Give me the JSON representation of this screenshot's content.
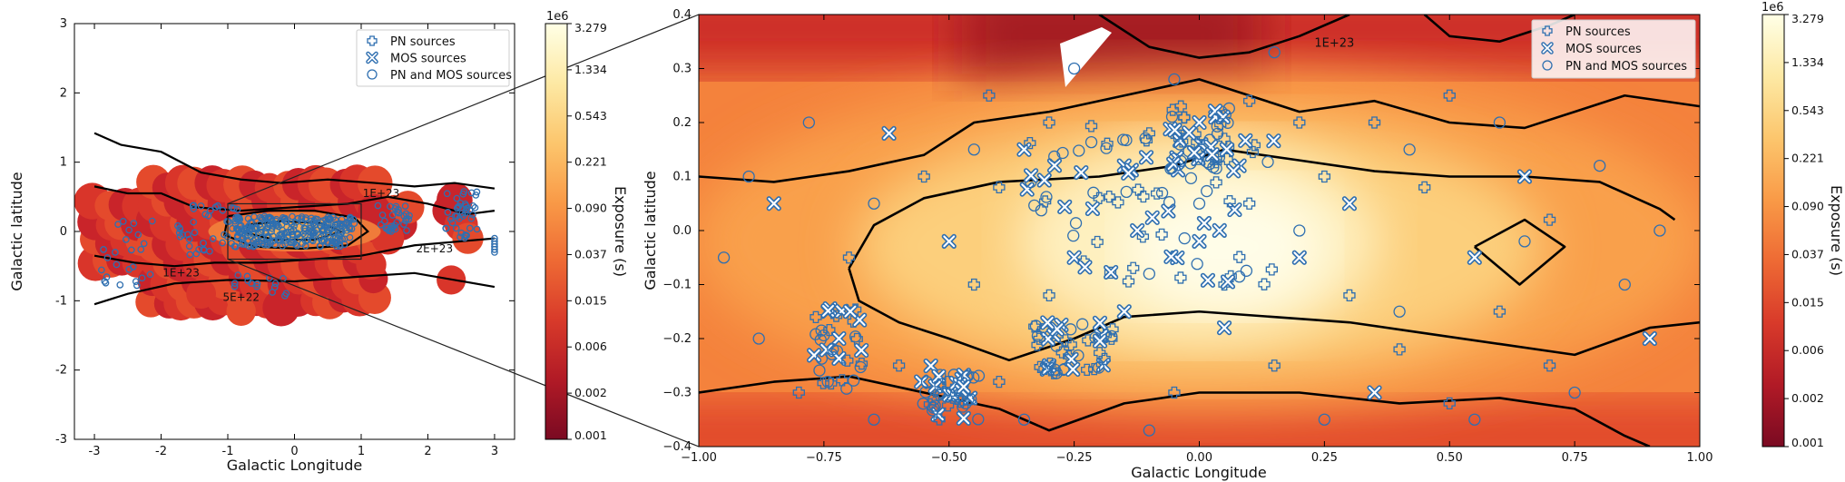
{
  "colors": {
    "marker": "#2f6fb0",
    "contour": "#000000",
    "cmap": [
      "#7a0a22",
      "#b11a26",
      "#d83a2a",
      "#ee6a34",
      "#f99a47",
      "#fcc66d",
      "#fde9a4",
      "#ffffe6"
    ]
  },
  "chart_data": [
    {
      "type": "scatter",
      "panel": "left",
      "xlabel": "Galactic Longitude",
      "ylabel": "Galactic latitude",
      "xlim": [
        -3.3,
        3.3
      ],
      "ylim": [
        -3,
        3
      ],
      "xticks": [
        -3,
        -2,
        -1,
        0,
        1,
        2,
        3
      ],
      "yticks": [
        -3,
        -2,
        -1,
        0,
        1,
        2,
        3
      ],
      "grid": false,
      "legend_position": "top-right",
      "legend": [
        "PN sources",
        "MOS sources",
        "PN and MOS sources"
      ],
      "contour_labels": [
        {
          "text": "1E+23",
          "x": 1.3,
          "y": 0.5
        },
        {
          "text": "2E+23",
          "x": 2.1,
          "y": -0.3
        },
        {
          "text": "1E+23",
          "x": -1.7,
          "y": -0.65
        },
        {
          "text": "5E+22",
          "x": -0.8,
          "y": -1.0
        }
      ],
      "zoom_box": {
        "x": [
          -1,
          1
        ],
        "y": [
          -0.4,
          0.4
        ]
      }
    },
    {
      "type": "scatter",
      "panel": "right",
      "xlabel": "Galactic Longitude",
      "ylabel": "Galactic latitude",
      "xlim": [
        -1.0,
        1.0
      ],
      "ylim": [
        -0.4,
        0.4
      ],
      "xticks": [
        "−1.00",
        "−0.75",
        "−0.50",
        "−0.25",
        "0.00",
        "0.25",
        "0.50",
        "0.75",
        "1.00"
      ],
      "yticks": [
        "−0.4",
        "−0.3",
        "−0.2",
        "−0.1",
        "0.0",
        "0.1",
        "0.2",
        "0.3",
        "0.4"
      ],
      "grid": false,
      "legend_position": "top-right",
      "legend": [
        "PN sources",
        "MOS sources",
        "PN and MOS sources"
      ],
      "contour_labels": [
        {
          "text": "1E+23",
          "x": 0.23,
          "y": 0.34
        }
      ],
      "series": [
        {
          "name": "PN sources",
          "marker": "plus-circle",
          "points": [
            [
              -0.42,
              0.25
            ],
            [
              -0.3,
              0.2
            ],
            [
              -0.1,
              0.18
            ],
            [
              0.05,
              0.17
            ],
            [
              0.1,
              0.24
            ],
            [
              0.2,
              0.2
            ],
            [
              0.35,
              0.2
            ],
            [
              0.5,
              0.25
            ],
            [
              -0.55,
              0.1
            ],
            [
              -0.4,
              0.08
            ],
            [
              -0.2,
              0.06
            ],
            [
              0.1,
              0.05
            ],
            [
              0.25,
              0.1
            ],
            [
              0.45,
              0.08
            ],
            [
              0.7,
              0.02
            ],
            [
              -0.7,
              -0.05
            ],
            [
              -0.45,
              -0.1
            ],
            [
              -0.3,
              -0.12
            ],
            [
              0.05,
              -0.1
            ],
            [
              0.3,
              -0.12
            ],
            [
              0.6,
              -0.15
            ],
            [
              -0.6,
              -0.25
            ],
            [
              -0.4,
              -0.28
            ],
            [
              -0.2,
              -0.2
            ],
            [
              0.15,
              -0.25
            ],
            [
              0.4,
              -0.22
            ],
            [
              0.7,
              -0.25
            ],
            [
              -0.8,
              -0.3
            ],
            [
              -0.05,
              -0.3
            ],
            [
              0.5,
              -0.32
            ]
          ]
        },
        {
          "name": "MOS sources",
          "marker": "x-circle",
          "points": [
            [
              -0.35,
              0.15
            ],
            [
              -0.15,
              0.12
            ],
            [
              0.0,
              0.2
            ],
            [
              0.08,
              0.12
            ],
            [
              0.3,
              0.05
            ],
            [
              -0.5,
              -0.02
            ],
            [
              -0.25,
              -0.05
            ],
            [
              0.0,
              -0.02
            ],
            [
              0.2,
              -0.05
            ],
            [
              0.55,
              -0.05
            ],
            [
              -0.72,
              -0.2
            ],
            [
              -0.5,
              -0.3
            ],
            [
              -0.3,
              -0.25
            ],
            [
              -0.15,
              -0.15
            ],
            [
              0.05,
              -0.18
            ],
            [
              0.35,
              -0.3
            ],
            [
              0.65,
              0.1
            ],
            [
              -0.62,
              0.18
            ],
            [
              0.9,
              -0.2
            ],
            [
              -0.85,
              0.05
            ]
          ]
        },
        {
          "name": "PN and MOS sources",
          "marker": "circle",
          "points": [
            [
              -0.9,
              0.1
            ],
            [
              -0.78,
              0.2
            ],
            [
              -0.65,
              0.05
            ],
            [
              -0.25,
              0.3
            ],
            [
              -0.05,
              0.28
            ],
            [
              0.15,
              0.33
            ],
            [
              0.42,
              0.15
            ],
            [
              0.6,
              0.2
            ],
            [
              0.8,
              0.12
            ],
            [
              0.92,
              0.0
            ],
            [
              0.85,
              -0.1
            ],
            [
              0.75,
              -0.3
            ],
            [
              0.55,
              -0.35
            ],
            [
              0.25,
              -0.35
            ],
            [
              -0.1,
              -0.37
            ],
            [
              -0.35,
              -0.35
            ],
            [
              -0.65,
              -0.35
            ],
            [
              -0.88,
              -0.2
            ],
            [
              -0.95,
              -0.05
            ],
            [
              0.0,
              0.05
            ],
            [
              0.2,
              0.0
            ],
            [
              -0.1,
              -0.08
            ],
            [
              0.4,
              -0.15
            ],
            [
              -0.45,
              0.15
            ],
            [
              0.65,
              -0.02
            ]
          ]
        }
      ]
    }
  ],
  "colorbars": [
    {
      "label": "Exposure (s)",
      "multiplier": "1e6",
      "ticks": [
        "3.279",
        "1.334",
        "0.543",
        "0.221",
        "0.090",
        "0.037",
        "0.015",
        "0.006",
        "0.002",
        "0.001"
      ]
    },
    {
      "label": "Exposure (s)",
      "multiplier": "1e6",
      "ticks": [
        "3.279",
        "1.334",
        "0.543",
        "0.221",
        "0.090",
        "0.037",
        "0.015",
        "0.006",
        "0.002",
        "0.001"
      ]
    }
  ]
}
